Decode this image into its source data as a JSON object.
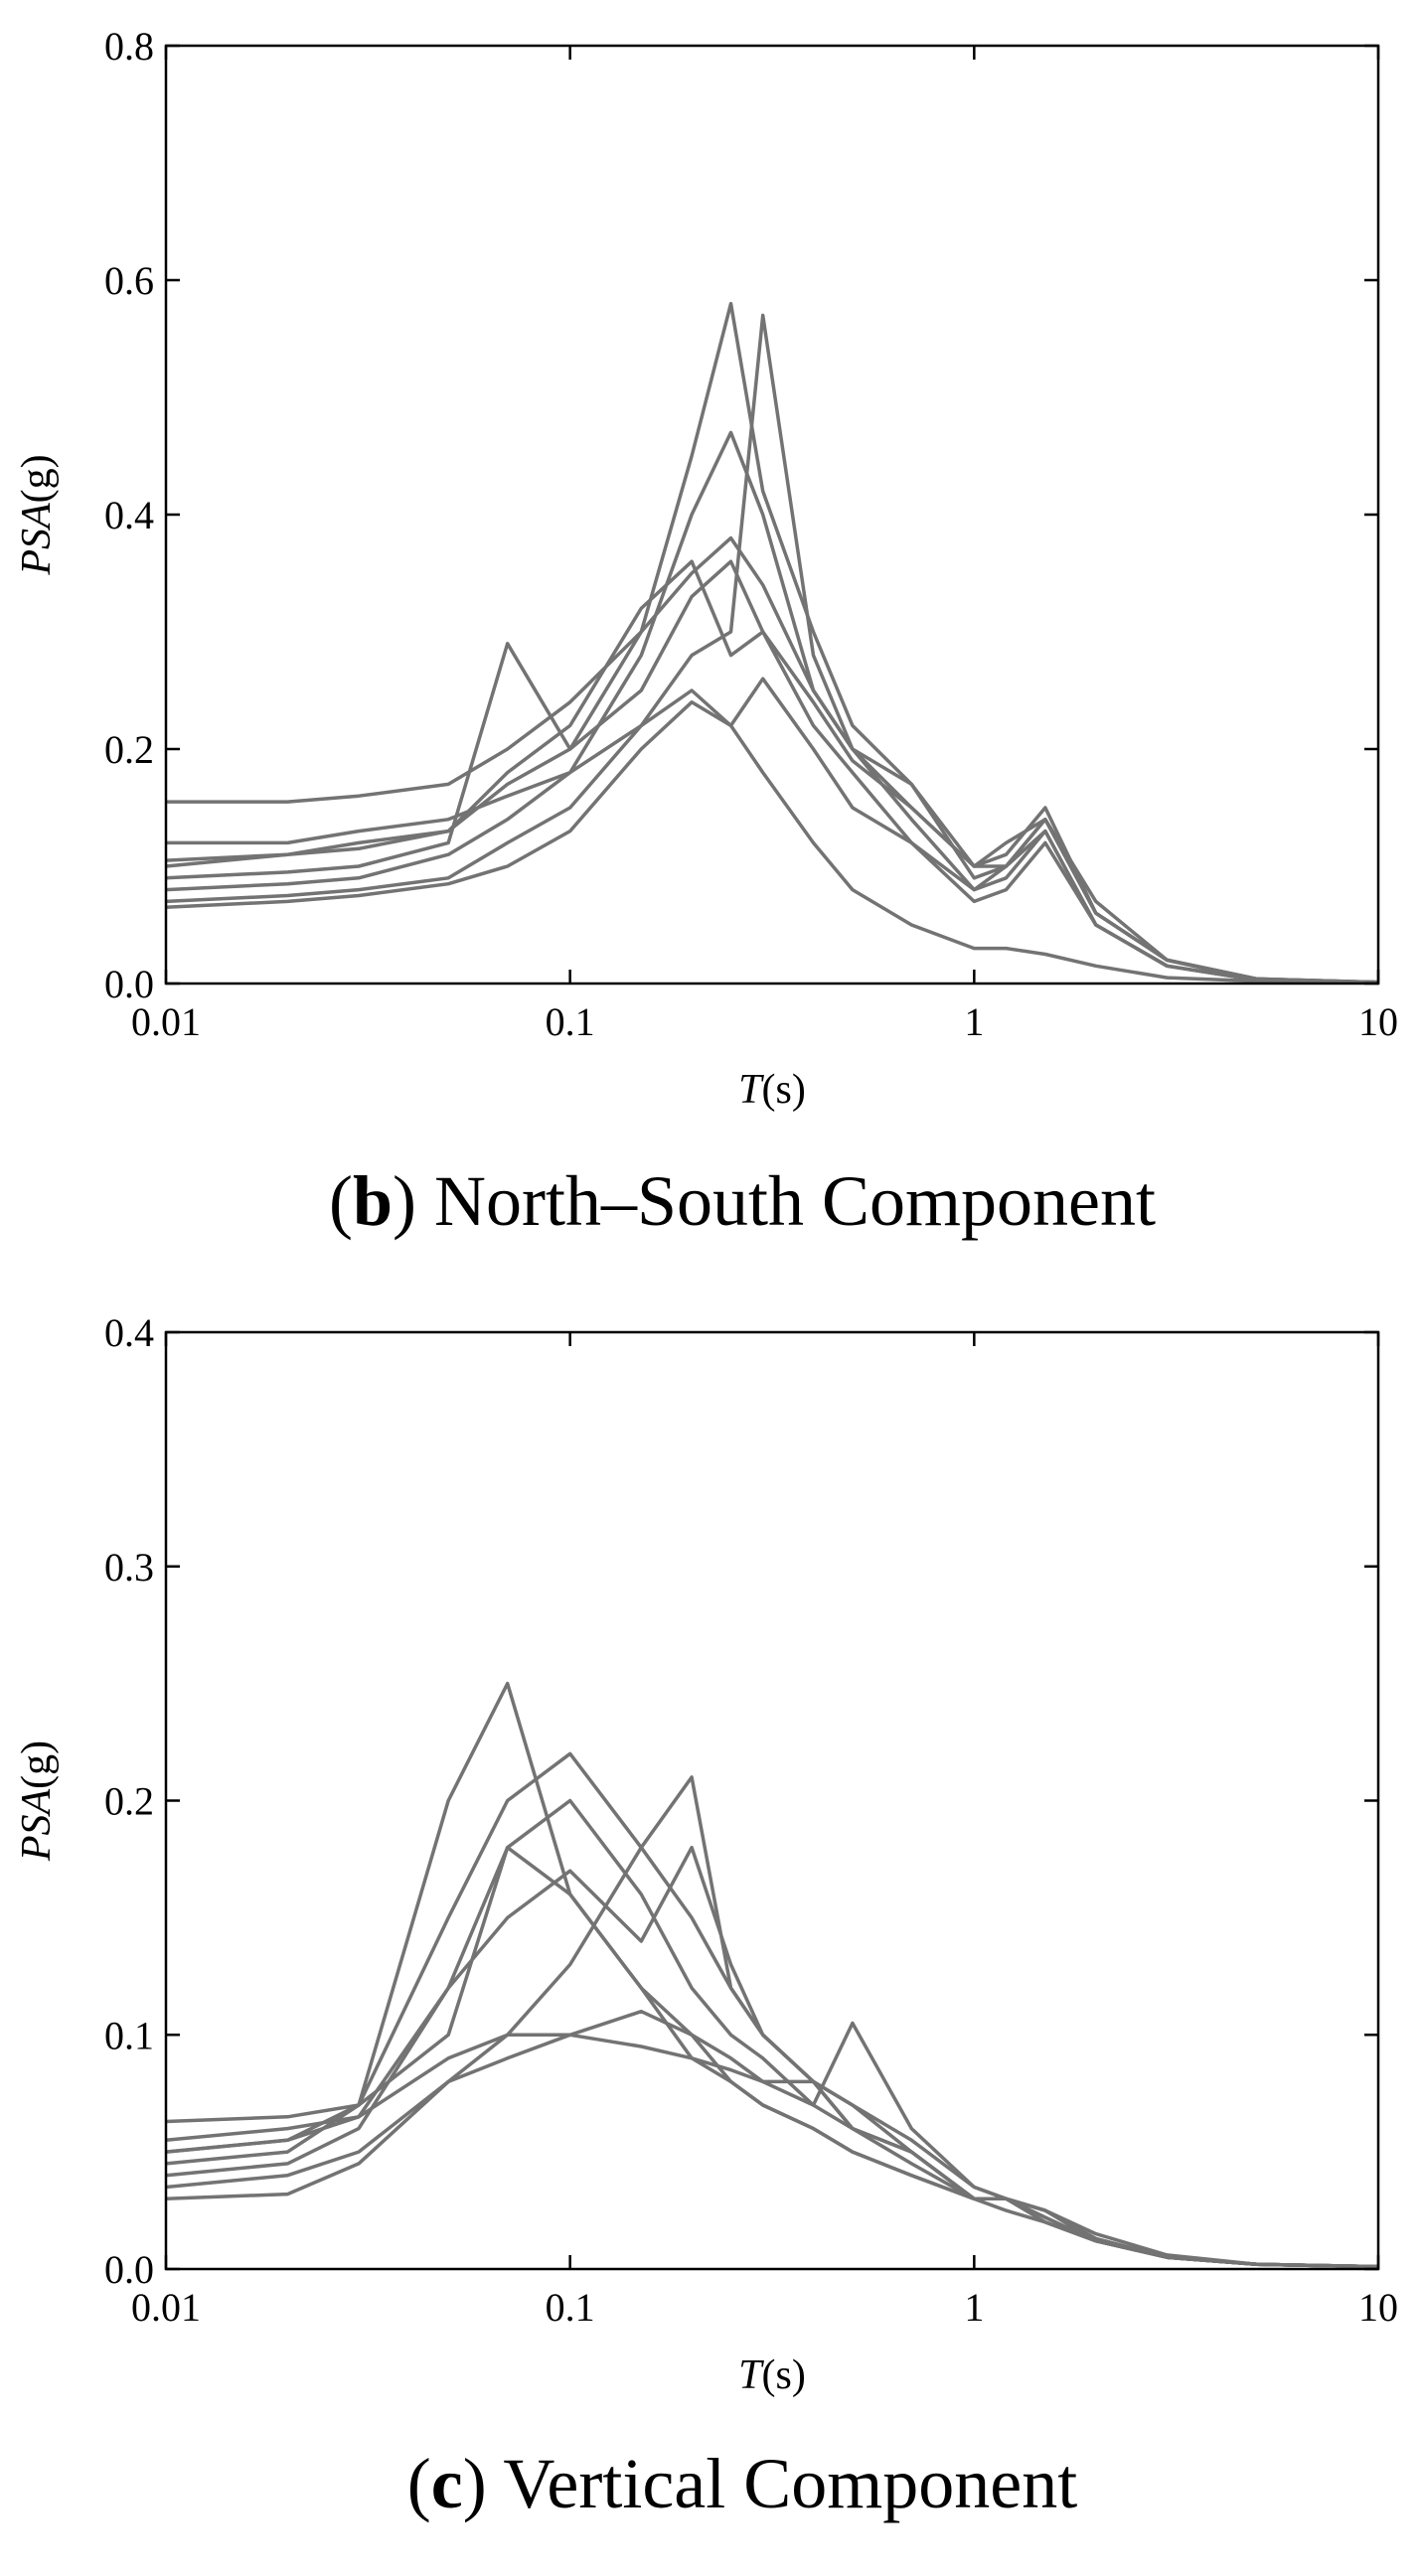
{
  "chart_data": [
    {
      "type": "line",
      "log_x": true,
      "caption": [
        "(",
        "b",
        ") North–South Component"
      ],
      "x_label": [
        "T",
        "(s)"
      ],
      "y_label": [
        "PSA",
        "(g)"
      ],
      "xlim": [
        0.01,
        10
      ],
      "xticks": [
        0.01,
        0.1,
        1,
        10
      ],
      "ylim": [
        0,
        0.8
      ],
      "yticks": [
        {
          "value": 0,
          "label": "0.0"
        },
        0.2,
        0.4,
        0.6,
        0.8
      ],
      "x": [
        0.01,
        0.02,
        0.03,
        0.05,
        0.07,
        0.1,
        0.15,
        0.2,
        0.25,
        0.3,
        0.4,
        0.5,
        0.7,
        1,
        1.2,
        1.5,
        2,
        3,
        5,
        10
      ],
      "series": [
        {
          "color": "#737373",
          "values": [
            0.155,
            0.155,
            0.16,
            0.17,
            0.2,
            0.24,
            0.3,
            0.35,
            0.38,
            0.34,
            0.25,
            0.2,
            0.15,
            0.1,
            0.12,
            0.14,
            0.07,
            0.02,
            0.004,
            0.001
          ]
        },
        {
          "color": "#737373",
          "values": [
            0.1,
            0.11,
            0.12,
            0.13,
            0.17,
            0.2,
            0.3,
            0.45,
            0.58,
            0.42,
            0.3,
            0.22,
            0.17,
            0.1,
            0.11,
            0.15,
            0.06,
            0.02,
            0.004,
            0.001
          ]
        },
        {
          "color": "#737373",
          "values": [
            0.07,
            0.075,
            0.08,
            0.09,
            0.12,
            0.15,
            0.22,
            0.28,
            0.3,
            0.57,
            0.28,
            0.2,
            0.14,
            0.08,
            0.09,
            0.13,
            0.05,
            0.015,
            0.003,
            0.001
          ]
        },
        {
          "color": "#737373",
          "values": [
            0.09,
            0.095,
            0.1,
            0.12,
            0.29,
            0.2,
            0.25,
            0.33,
            0.36,
            0.3,
            0.22,
            0.18,
            0.12,
            0.08,
            0.1,
            0.14,
            0.06,
            0.02,
            0.003,
            0.001
          ]
        },
        {
          "color": "#737373",
          "values": [
            0.12,
            0.12,
            0.13,
            0.14,
            0.16,
            0.18,
            0.22,
            0.25,
            0.22,
            0.18,
            0.12,
            0.08,
            0.05,
            0.03,
            0.03,
            0.025,
            0.015,
            0.005,
            0.002,
            0.001
          ]
        },
        {
          "color": "#737373",
          "values": [
            0.08,
            0.085,
            0.09,
            0.11,
            0.14,
            0.18,
            0.28,
            0.4,
            0.47,
            0.4,
            0.25,
            0.2,
            0.17,
            0.09,
            0.1,
            0.13,
            0.05,
            0.015,
            0.003,
            0.001
          ]
        },
        {
          "color": "#737373",
          "values": [
            0.065,
            0.07,
            0.075,
            0.085,
            0.1,
            0.13,
            0.2,
            0.24,
            0.22,
            0.26,
            0.2,
            0.15,
            0.12,
            0.07,
            0.08,
            0.12,
            0.05,
            0.015,
            0.003,
            0.001
          ]
        },
        {
          "color": "#737373",
          "values": [
            0.105,
            0.11,
            0.115,
            0.13,
            0.18,
            0.22,
            0.32,
            0.36,
            0.28,
            0.3,
            0.24,
            0.19,
            0.15,
            0.1,
            0.1,
            0.14,
            0.06,
            0.02,
            0.004,
            0.001
          ]
        }
      ]
    },
    {
      "type": "line",
      "log_x": true,
      "caption": [
        "(",
        "c",
        ") Vertical Component"
      ],
      "x_label": [
        "T",
        "(s)"
      ],
      "y_label": [
        "PSA",
        "(g)"
      ],
      "xlim": [
        0.01,
        10
      ],
      "xticks": [
        0.01,
        0.1,
        1,
        10
      ],
      "ylim": [
        0,
        0.4
      ],
      "yticks": [
        {
          "value": 0,
          "label": "0.0"
        },
        0.1,
        0.2,
        0.3,
        0.4
      ],
      "x": [
        0.01,
        0.02,
        0.03,
        0.05,
        0.07,
        0.1,
        0.15,
        0.2,
        0.25,
        0.3,
        0.4,
        0.5,
        0.7,
        1,
        1.2,
        1.5,
        2,
        3,
        5,
        10
      ],
      "series": [
        {
          "color": "#737373",
          "values": [
            0.063,
            0.065,
            0.07,
            0.1,
            0.18,
            0.16,
            0.12,
            0.1,
            0.08,
            0.07,
            0.06,
            0.05,
            0.04,
            0.03,
            0.03,
            0.025,
            0.015,
            0.006,
            0.002,
            0.001
          ]
        },
        {
          "color": "#737373",
          "values": [
            0.05,
            0.055,
            0.07,
            0.2,
            0.25,
            0.16,
            0.12,
            0.09,
            0.08,
            0.07,
            0.06,
            0.05,
            0.04,
            0.03,
            0.03,
            0.02,
            0.012,
            0.005,
            0.002,
            0.001
          ]
        },
        {
          "color": "#737373",
          "values": [
            0.04,
            0.045,
            0.06,
            0.12,
            0.18,
            0.2,
            0.16,
            0.12,
            0.1,
            0.09,
            0.07,
            0.06,
            0.05,
            0.03,
            0.03,
            0.025,
            0.013,
            0.005,
            0.002,
            0.001
          ]
        },
        {
          "color": "#737373",
          "values": [
            0.03,
            0.032,
            0.045,
            0.08,
            0.1,
            0.13,
            0.18,
            0.21,
            0.12,
            0.1,
            0.08,
            0.07,
            0.05,
            0.03,
            0.03,
            0.022,
            0.012,
            0.005,
            0.002,
            0.001
          ]
        },
        {
          "color": "#737373",
          "values": [
            0.055,
            0.06,
            0.065,
            0.09,
            0.1,
            0.1,
            0.095,
            0.09,
            0.085,
            0.08,
            0.08,
            0.06,
            0.045,
            0.03,
            0.025,
            0.02,
            0.012,
            0.005,
            0.002,
            0.001
          ]
        },
        {
          "color": "#737373",
          "values": [
            0.045,
            0.05,
            0.07,
            0.15,
            0.2,
            0.22,
            0.18,
            0.15,
            0.12,
            0.1,
            0.08,
            0.07,
            0.055,
            0.035,
            0.03,
            0.025,
            0.013,
            0.005,
            0.002,
            0.001
          ]
        },
        {
          "color": "#737373",
          "values": [
            0.035,
            0.04,
            0.05,
            0.08,
            0.09,
            0.1,
            0.11,
            0.1,
            0.09,
            0.08,
            0.07,
            0.105,
            0.06,
            0.035,
            0.03,
            0.025,
            0.012,
            0.005,
            0.002,
            0.001
          ]
        },
        {
          "color": "#737373",
          "values": [
            0.05,
            0.055,
            0.065,
            0.12,
            0.15,
            0.17,
            0.14,
            0.18,
            0.13,
            0.1,
            0.08,
            0.06,
            0.05,
            0.03,
            0.03,
            0.022,
            0.012,
            0.005,
            0.002,
            0.001
          ]
        }
      ]
    }
  ]
}
